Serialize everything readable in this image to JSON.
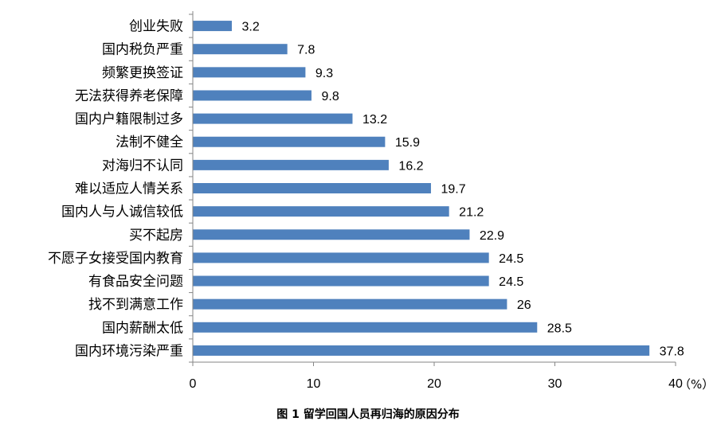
{
  "chart_data": {
    "type": "bar",
    "orientation": "horizontal",
    "categories": [
      "创业失败",
      "国内税负严重",
      "频繁更换签证",
      "无法获得养老保障",
      "国内户籍限制过多",
      "法制不健全",
      "对海归不认同",
      "难以适应人情关系",
      "国内人与人诚信较低",
      "买不起房",
      "不愿子女接受国内教育",
      "有食品安全问题",
      "找不到满意工作",
      "国内薪酬太低",
      "国内环境污染严重"
    ],
    "values": [
      3.2,
      7.8,
      9.3,
      9.8,
      13.2,
      15.9,
      16.2,
      19.7,
      21.2,
      22.9,
      24.5,
      24.5,
      26,
      28.5,
      37.8
    ],
    "value_labels": [
      "3.2",
      "7.8",
      "9.3",
      "9.8",
      "13.2",
      "15.9",
      "16.2",
      "19.7",
      "21.2",
      "22.9",
      "24.5",
      "24.5",
      "26",
      "28.5",
      "37.8"
    ],
    "xlim": [
      0,
      40
    ],
    "xticks": [
      "0",
      "10",
      "20",
      "30",
      "40"
    ],
    "unit": "（%）",
    "caption": "图 1  留学回国人员再归海的原因分布",
    "grid": false,
    "bar_color": "#4f81bd"
  }
}
